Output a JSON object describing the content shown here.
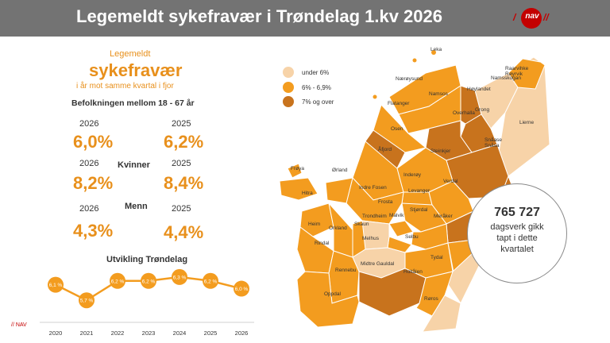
{
  "header": {
    "title": "Legemeldt sykefravær i Trøndelag 1.kv 2026",
    "logo_text": "nav"
  },
  "summary": {
    "label_top": "Legemeldt",
    "label_main": "sykefravær",
    "label_sub": "i år mot samme kvartal i fjor",
    "population": "Befolkningen mellom 18 - 67 år",
    "total": {
      "year_a": "2026",
      "value_a": "6,0%",
      "year_b": "2025",
      "value_b": "6,2%"
    },
    "women": {
      "label": "Kvinner",
      "year_a": "2026",
      "value_a": "8,2%",
      "year_b": "2025",
      "value_b": "8,4%"
    },
    "men": {
      "label": "Menn",
      "year_a": "2026",
      "value_a": "4,3%",
      "year_b": "2025",
      "value_b": "4,4%"
    }
  },
  "trend": {
    "title": "Utvikling Trøndelag"
  },
  "chart_data": {
    "type": "line",
    "title": "Utvikling Trøndelag",
    "categories": [
      "2020",
      "2021",
      "2022",
      "2023",
      "2024",
      "2025",
      "2026"
    ],
    "series": [
      {
        "values": [
          6.1,
          5.7,
          6.2,
          6.2,
          6.3,
          6.2,
          6.0
        ]
      }
    ],
    "data_labels": [
      "6,1 %",
      "5,7 %",
      "6,2 %",
      "6,2 %",
      "6,3 %",
      "6,2 %",
      "6,0 %"
    ],
    "ylim": [
      5.5,
      6.4
    ],
    "grid": false,
    "color": "#f39c1f"
  },
  "legend": {
    "items": [
      {
        "label": "under 6%",
        "color": "#f7d3a8"
      },
      {
        "label": "6% - 6,9%",
        "color": "#f39c1f"
      },
      {
        "label": "7% og over",
        "color": "#c8731d"
      }
    ]
  },
  "map": {
    "labels": [
      "Leka",
      "Nærøysund",
      "Namsos",
      "Namsskogan",
      "Raarvihke Røyrvik",
      "Høylandet",
      "Grong",
      "Overhalla",
      "Flatanger",
      "Osen",
      "Lierne",
      "Snåase Snåsa",
      "Åfjord",
      "Steinkjer",
      "Frøya",
      "Ørland",
      "Inderøy",
      "Verdal",
      "Hitra",
      "Indre Fosen",
      "Levanger",
      "Frosta",
      "Trondheim",
      "Malvik",
      "Stjørdal",
      "Meråker",
      "Heim",
      "Orkland",
      "Skaun",
      "Melhus",
      "Selbu",
      "Rindal",
      "Tydal",
      "Rennebu",
      "Midtre Gauldal",
      "Holtålen",
      "Oppdal",
      "Røros"
    ]
  },
  "callout": {
    "number": "765 727",
    "line1": "dagsverk gikk",
    "line2": "tapt i dette",
    "line3": "kvartalet"
  },
  "footer": {
    "text": "// NAV"
  }
}
